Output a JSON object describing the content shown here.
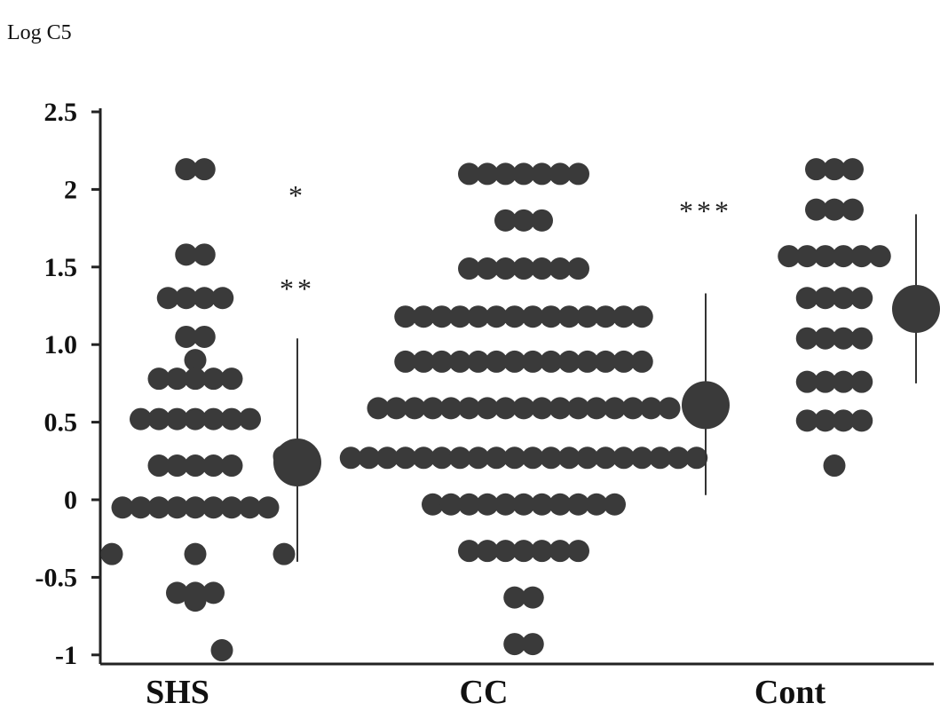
{
  "chart_data": {
    "type": "scatter",
    "title": "",
    "ylabel": "Log C5",
    "xlabel": "",
    "ylim": [
      -1.1,
      2.5
    ],
    "yticks": [
      "2.5",
      "2",
      "1.5",
      "1.0",
      "0.5",
      "0",
      "-0.5",
      "-1"
    ],
    "categories": [
      "SHS",
      "CC",
      "Cont"
    ],
    "dot_color": "#3a3a3a",
    "groups": [
      {
        "category": "SHS",
        "rows": [
          {
            "y": 2.13,
            "n": 2
          },
          {
            "y": 1.58,
            "n": 2
          },
          {
            "y": 1.3,
            "n": 4
          },
          {
            "y": 1.05,
            "n": 2
          },
          {
            "y": 0.9,
            "n": 1
          },
          {
            "y": 0.78,
            "n": 5
          },
          {
            "y": 0.52,
            "n": 7
          },
          {
            "y": 0.22,
            "n": 5
          },
          {
            "y": -0.05,
            "n": 9
          },
          {
            "y": -0.35,
            "n": 1
          },
          {
            "y": -0.6,
            "n": 3
          },
          {
            "y": -0.65,
            "n": 1
          }
        ],
        "outliers": [
          {
            "y": -0.35,
            "side": "left"
          },
          {
            "y": 0.28,
            "side": "right"
          },
          {
            "y": -0.35,
            "side": "right"
          },
          {
            "y": -0.97,
            "side": "bottom"
          }
        ],
        "mean": 0.24,
        "range": [
          -0.4,
          1.04
        ],
        "stars": [
          {
            "label": "*",
            "y": 1.98
          },
          {
            "label": "**",
            "y": 1.38
          }
        ]
      },
      {
        "category": "CC",
        "rows": [
          {
            "y": 2.1,
            "n": 7
          },
          {
            "y": 1.8,
            "n": 3
          },
          {
            "y": 1.49,
            "n": 7
          },
          {
            "y": 1.18,
            "n": 14
          },
          {
            "y": 0.89,
            "n": 14
          },
          {
            "y": 0.59,
            "n": 17
          },
          {
            "y": 0.27,
            "n": 20
          },
          {
            "y": -0.03,
            "n": 11
          },
          {
            "y": -0.33,
            "n": 7
          },
          {
            "y": -0.63,
            "n": 2
          },
          {
            "y": -0.93,
            "n": 2
          }
        ],
        "outliers": [],
        "mean": 0.61,
        "range": [
          0.03,
          1.33
        ],
        "stars": [
          {
            "label": "***",
            "y": 1.88
          }
        ]
      },
      {
        "category": "Cont",
        "rows": [
          {
            "y": 2.13,
            "n": 3
          },
          {
            "y": 1.87,
            "n": 3
          },
          {
            "y": 1.57,
            "n": 6
          },
          {
            "y": 1.3,
            "n": 4
          },
          {
            "y": 1.04,
            "n": 4
          },
          {
            "y": 0.76,
            "n": 4
          },
          {
            "y": 0.51,
            "n": 4
          },
          {
            "y": 0.22,
            "n": 1
          }
        ],
        "outliers": [],
        "mean": 1.23,
        "range": [
          0.75,
          1.84
        ],
        "stars": []
      }
    ]
  }
}
